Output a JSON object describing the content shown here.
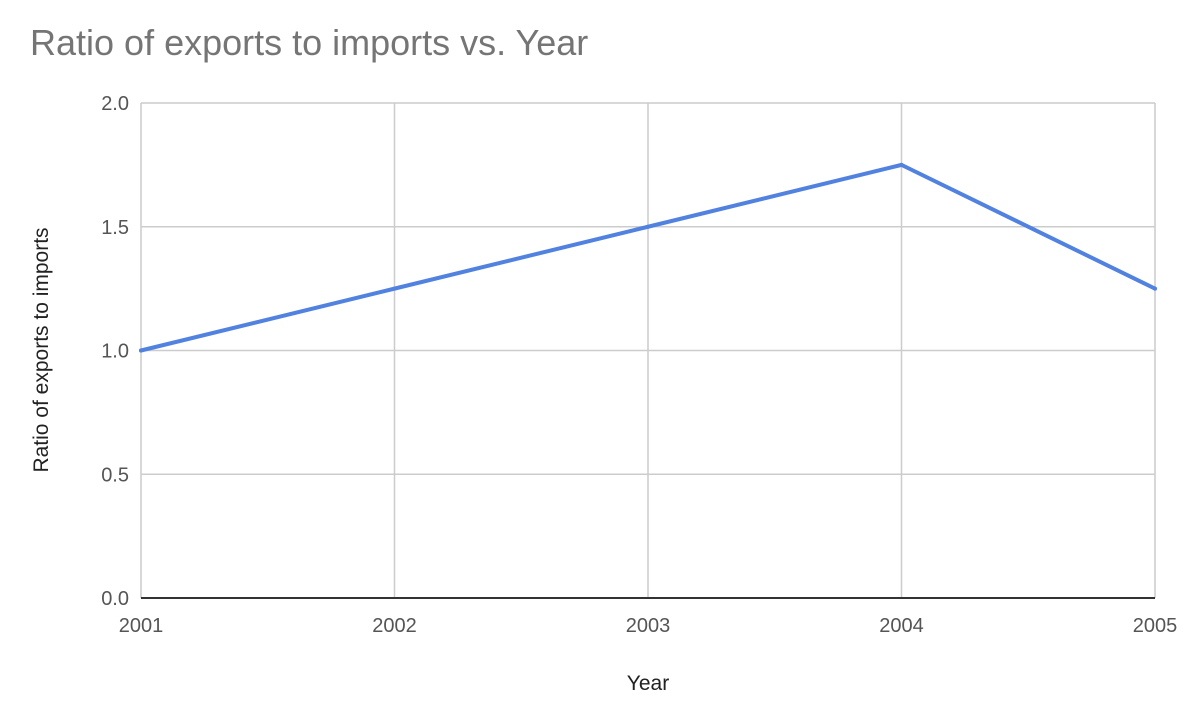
{
  "chart_data": {
    "type": "line",
    "title": "Ratio of exports to imports vs. Year",
    "xlabel": "Year",
    "ylabel": "Ratio of exports to imports",
    "x": [
      2001,
      2002,
      2003,
      2004,
      2005
    ],
    "x_tick_labels": [
      "2001",
      "2002",
      "2003",
      "2004",
      "2005"
    ],
    "y_ticks": [
      0.0,
      0.5,
      1.0,
      1.5,
      2.0
    ],
    "y_tick_labels": [
      "0.0",
      "0.5",
      "1.0",
      "1.5",
      "2.0"
    ],
    "xlim": [
      2001,
      2005
    ],
    "ylim": [
      0,
      2
    ],
    "grid": true,
    "legend": "none",
    "series": [
      {
        "values": [
          1.0,
          1.25,
          1.5,
          1.75,
          1.25
        ],
        "color": "#5282e0"
      }
    ]
  },
  "colors": {
    "title": "#757575",
    "grid": "#cccccc",
    "baseline": "#333333",
    "tick_text": "#555555",
    "axis_title": "#222222"
  }
}
